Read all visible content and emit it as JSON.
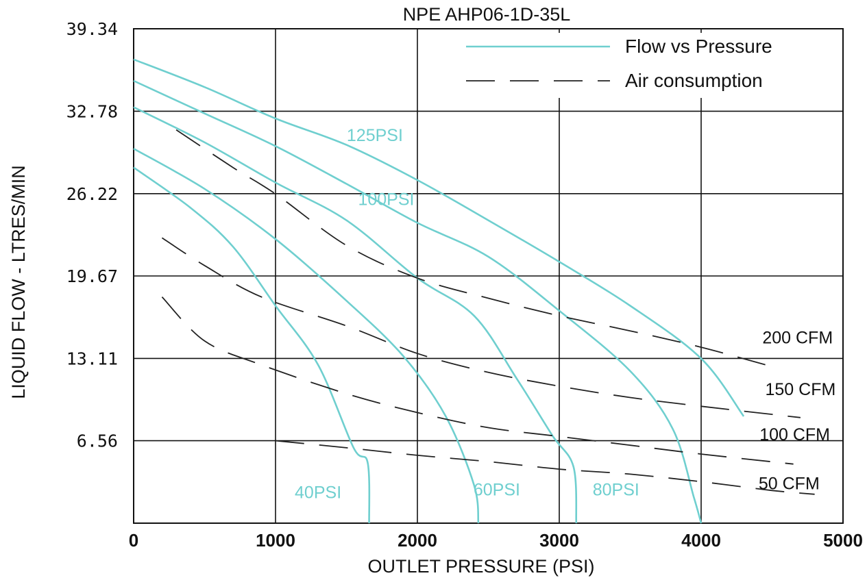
{
  "chart_data": {
    "type": "line",
    "title": "NPE AHP06-1D-35L",
    "xlabel": "OUTLET PRESSURE (PSI)",
    "ylabel": "LIQUID FLOW - LTRES/MIN",
    "xlim": [
      0,
      5000
    ],
    "ylim": [
      0,
      39.34
    ],
    "x_ticks": [
      "0",
      "1000",
      "2000",
      "3000",
      "4000",
      "5000"
    ],
    "y_ticks": [
      "6.56",
      "13.11",
      "19.67",
      "26.22",
      "32.78",
      "39.34"
    ],
    "y_tick_values": [
      6.56,
      13.11,
      19.67,
      26.22,
      32.78,
      39.34
    ],
    "grid": true,
    "legend_position": "top-right",
    "legend": [
      {
        "label": "Flow vs Pressure",
        "style": "solid",
        "color": "#6fcfcf"
      },
      {
        "label": "Air consumption",
        "style": "dashed",
        "color": "#222222"
      }
    ],
    "series": [
      {
        "name": "125PSI",
        "kind": "flow",
        "points": [
          [
            0,
            36.9
          ],
          [
            500,
            34.7
          ],
          [
            1000,
            32.2
          ],
          [
            1500,
            30.1
          ],
          [
            2000,
            27.3
          ],
          [
            2500,
            24.1
          ],
          [
            3000,
            20.8
          ],
          [
            3500,
            17.3
          ],
          [
            4000,
            13.1
          ],
          [
            4300,
            8.5
          ]
        ]
      },
      {
        "name": "100PSI",
        "kind": "flow",
        "points": [
          [
            0,
            35.2
          ],
          [
            500,
            32.6
          ],
          [
            1000,
            30.0
          ],
          [
            1500,
            27.0
          ],
          [
            2000,
            23.9
          ],
          [
            2500,
            21.2
          ],
          [
            3000,
            16.9
          ],
          [
            3500,
            12.1
          ],
          [
            3800,
            7.5
          ],
          [
            3950,
            2.0
          ],
          [
            4000,
            0
          ]
        ]
      },
      {
        "name": "80PSI",
        "kind": "flow",
        "points": [
          [
            0,
            33.1
          ],
          [
            500,
            30.3
          ],
          [
            1000,
            27.1
          ],
          [
            1500,
            24.1
          ],
          [
            2000,
            19.5
          ],
          [
            2400,
            16.5
          ],
          [
            2700,
            11.5
          ],
          [
            2950,
            7.0
          ],
          [
            3100,
            4.5
          ],
          [
            3120,
            0
          ]
        ]
      },
      {
        "name": "60PSI",
        "kind": "flow",
        "points": [
          [
            0,
            29.8
          ],
          [
            500,
            26.6
          ],
          [
            1000,
            22.6
          ],
          [
            1500,
            17.7
          ],
          [
            1900,
            13.3
          ],
          [
            2200,
            8.5
          ],
          [
            2400,
            3.0
          ],
          [
            2430,
            0
          ]
        ]
      },
      {
        "name": "40PSI",
        "kind": "flow",
        "points": [
          [
            0,
            28.3
          ],
          [
            400,
            25.1
          ],
          [
            700,
            22.0
          ],
          [
            1000,
            17.3
          ],
          [
            1300,
            12.6
          ],
          [
            1550,
            6.0
          ],
          [
            1650,
            4.8
          ],
          [
            1660,
            0
          ]
        ]
      },
      {
        "name": "200 CFM",
        "kind": "air",
        "points": [
          [
            300,
            31.3
          ],
          [
            700,
            28.3
          ],
          [
            1000,
            26.2
          ],
          [
            1500,
            22.1
          ],
          [
            2000,
            19.5
          ],
          [
            2500,
            17.9
          ],
          [
            3000,
            16.5
          ],
          [
            3500,
            15.3
          ],
          [
            4000,
            14.0
          ],
          [
            4550,
            12.3
          ]
        ]
      },
      {
        "name": "150 CFM",
        "kind": "air",
        "points": [
          [
            200,
            22.7
          ],
          [
            500,
            20.5
          ],
          [
            900,
            18.0
          ],
          [
            1500,
            15.7
          ],
          [
            2000,
            13.5
          ],
          [
            2500,
            12.0
          ],
          [
            3000,
            10.9
          ],
          [
            3500,
            10.0
          ],
          [
            4000,
            9.3
          ],
          [
            4700,
            8.4
          ]
        ]
      },
      {
        "name": "100 CFM",
        "kind": "air",
        "points": [
          [
            200,
            18.0
          ],
          [
            500,
            14.5
          ],
          [
            900,
            12.6
          ],
          [
            1500,
            10.3
          ],
          [
            2000,
            8.8
          ],
          [
            2500,
            7.6
          ],
          [
            3000,
            6.9
          ],
          [
            3500,
            6.2
          ],
          [
            4000,
            5.5
          ],
          [
            4650,
            4.7
          ]
        ]
      },
      {
        "name": "50 CFM",
        "kind": "air",
        "points": [
          [
            1000,
            6.56
          ],
          [
            1500,
            6.0
          ],
          [
            2000,
            5.4
          ],
          [
            2500,
            4.9
          ],
          [
            3000,
            4.3
          ],
          [
            3500,
            3.9
          ],
          [
            4000,
            3.3
          ],
          [
            4500,
            2.6
          ],
          [
            4800,
            2.3
          ]
        ]
      }
    ],
    "curve_labels": [
      {
        "text": "125PSI",
        "x": 1700,
        "y": 30.4,
        "color": "#6fcfcf"
      },
      {
        "text": "100PSI",
        "x": 1780,
        "y": 25.3,
        "color": "#6fcfcf"
      },
      {
        "text": "40PSI",
        "x": 1300,
        "y": 2.0,
        "color": "#6fcfcf"
      },
      {
        "text": "60PSI",
        "x": 2560,
        "y": 2.2,
        "color": "#6fcfcf"
      },
      {
        "text": "80PSI",
        "x": 3400,
        "y": 2.2,
        "color": "#6fcfcf"
      },
      {
        "text": "200 CFM",
        "x": 4680,
        "y": 14.3,
        "color": "#111111"
      },
      {
        "text": "150 CFM",
        "x": 4700,
        "y": 10.2,
        "color": "#111111"
      },
      {
        "text": "100 CFM",
        "x": 4660,
        "y": 6.6,
        "color": "#111111"
      },
      {
        "text": "50 CFM",
        "x": 4620,
        "y": 2.7,
        "color": "#111111"
      }
    ]
  }
}
